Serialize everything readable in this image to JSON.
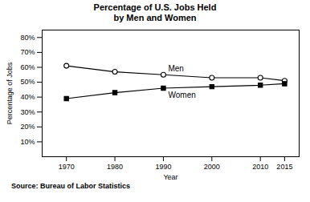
{
  "chart_data": {
    "type": "line",
    "title": "Percentage of U.S. Jobs Held\nby Men and Women",
    "xlabel": "Year",
    "ylabel": "Percentage of Jobs",
    "source": "Source: Bureau of Labor Statistics",
    "x": [
      1970,
      1980,
      1990,
      2000,
      2010,
      2015
    ],
    "series": [
      {
        "name": "Men",
        "color": "#000000",
        "marker": "circle",
        "values": [
          61,
          57,
          55,
          53,
          53,
          51
        ],
        "label_x": 1991,
        "label_y": 57.5
      },
      {
        "name": "Women",
        "color": "#000000",
        "marker": "square",
        "values": [
          39,
          43,
          46,
          47,
          48,
          49
        ],
        "label_x": 1991,
        "label_y": 43.5
      }
    ],
    "xlim": [
      1965,
      2018
    ],
    "xticks": [
      1970,
      1980,
      1990,
      2000,
      2010,
      2015
    ],
    "ylim": [
      0,
      85
    ],
    "yticks": [
      {
        "value": 10,
        "label": "10%"
      },
      {
        "value": 20,
        "label": "20%"
      },
      {
        "value": 30,
        "label": "30%"
      },
      {
        "value": 40,
        "label": "40%"
      },
      {
        "value": 50,
        "label": "50%"
      },
      {
        "value": 60,
        "label": "60%"
      },
      {
        "value": 70,
        "label": "70%"
      },
      {
        "value": 80,
        "label": "80%"
      }
    ],
    "grid": false
  }
}
